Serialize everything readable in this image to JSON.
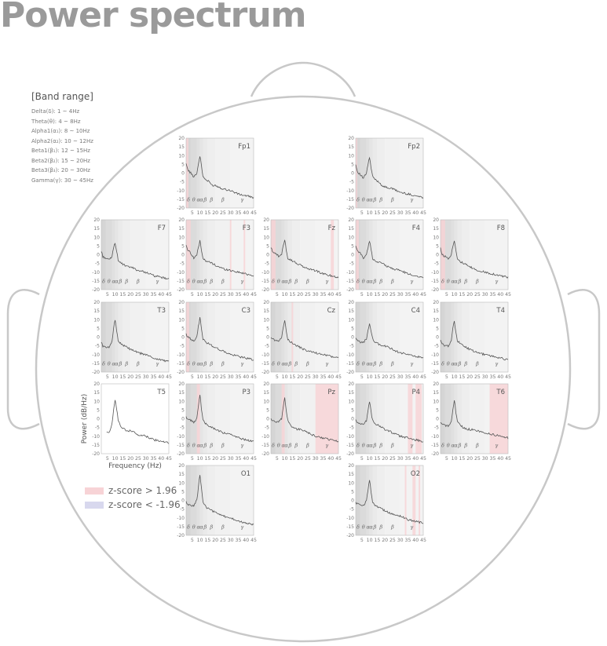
{
  "page": {
    "title": "Power spectrum"
  },
  "bands": {
    "title": "[Band range]",
    "items": [
      "Delta(δ): 1 ~ 4Hz",
      "Theta(θ): 4 ~ 8Hz",
      "Alpha1(α₁): 8 ~ 10Hz",
      "Alpha2(α₂): 10 ~ 12Hz",
      "Beta1(β₁): 12 ~ 15Hz",
      "Beta2(β₂): 15 ~ 20Hz",
      "Beta3(β₃): 20 ~ 30Hz",
      "Gamma(γ): 30 ~ 45Hz"
    ]
  },
  "legend": {
    "high": {
      "label": "z-score > 1.96",
      "color": "#f7d3d6"
    },
    "low": {
      "label": "z-score < -1.96",
      "color": "#d8d8ee"
    }
  },
  "colors": {
    "band_dark": "#b3b3b3",
    "band_light": "#e9e9e9",
    "line": "#555555",
    "head": "#c8c8c8"
  },
  "chart_data": {
    "type": "line",
    "xlabel": "Frequency (Hz)",
    "ylabel": "Power (dB/Hz)",
    "xlim": [
      1,
      45
    ],
    "ylim": [
      -20,
      20
    ],
    "yticks": [
      20,
      15,
      10,
      5,
      0,
      -5,
      -10,
      -15,
      -20
    ],
    "xticks": [
      5,
      10,
      15,
      20,
      25,
      30,
      35,
      40,
      45
    ],
    "band_labels": [
      "δ",
      "θ",
      "α",
      "α",
      "β",
      "β",
      "β",
      "γ"
    ],
    "band_edges_hz": [
      1,
      4,
      8,
      10,
      12,
      15,
      20,
      30,
      45
    ],
    "frequencies_hz": [
      1,
      2,
      4,
      6,
      8,
      9,
      10,
      11,
      12,
      14,
      16,
      18,
      20,
      25,
      30,
      35,
      40,
      45
    ],
    "channels": [
      {
        "name": "Fp1",
        "power_db": [
          6,
          2,
          0,
          -2,
          0,
          5,
          10,
          4,
          -2,
          -4,
          -5,
          -7,
          -7,
          -9,
          -10,
          -12,
          -13,
          -14
        ],
        "high_z_hz": [
          [
            1,
            2.5
          ]
        ],
        "low_z_hz": []
      },
      {
        "name": "Fp2",
        "power_db": [
          5,
          1,
          -1,
          -3,
          0,
          5,
          9,
          3,
          -2,
          -4,
          -5,
          -7,
          -8,
          -9,
          -11,
          -12,
          -13,
          -14
        ],
        "high_z_hz": [
          [
            1,
            2
          ]
        ],
        "low_z_hz": []
      },
      {
        "name": "F7",
        "power_db": [
          2,
          -1,
          -2,
          -3,
          -1,
          4,
          7,
          2,
          -3,
          -5,
          -6,
          -7,
          -7,
          -9,
          -10,
          -12,
          -13,
          -14
        ],
        "high_z_hz": [],
        "low_z_hz": []
      },
      {
        "name": "F3",
        "power_db": [
          5,
          3,
          1,
          -2,
          0,
          4,
          8,
          3,
          -2,
          -4,
          -4,
          -5,
          -6,
          -8,
          -9,
          -10,
          -11,
          -12
        ],
        "high_z_hz": [
          [
            1,
            4
          ],
          [
            29.5,
            30.5
          ],
          [
            38.5,
            39.5
          ]
        ],
        "low_z_hz": []
      },
      {
        "name": "Fz",
        "power_db": [
          4,
          2,
          1,
          -1,
          0,
          5,
          9,
          3,
          -2,
          -3,
          -4,
          -5,
          -6,
          -8,
          -9,
          -11,
          -12,
          -13
        ],
        "high_z_hz": [
          [
            1,
            4
          ],
          [
            40,
            42
          ]
        ],
        "low_z_hz": []
      },
      {
        "name": "F4",
        "power_db": [
          5,
          2,
          1,
          -2,
          0,
          4,
          8,
          3,
          -2,
          -4,
          -4,
          -5,
          -6,
          -8,
          -9,
          -11,
          -12,
          -13
        ],
        "high_z_hz": [
          [
            1,
            3
          ]
        ],
        "low_z_hz": []
      },
      {
        "name": "F8",
        "power_db": [
          4,
          0,
          -1,
          -2,
          0,
          5,
          8,
          3,
          -2,
          -4,
          -5,
          -6,
          -7,
          -9,
          -10,
          -11,
          -12,
          -13
        ],
        "high_z_hz": [
          [
            1,
            4
          ]
        ],
        "low_z_hz": []
      },
      {
        "name": "T3",
        "power_db": [
          -3,
          -5,
          -6,
          -6,
          -2,
          5,
          10,
          4,
          -2,
          -4,
          -5,
          -6,
          -7,
          -9,
          -10,
          -12,
          -13,
          -14
        ],
        "high_z_hz": [],
        "low_z_hz": []
      },
      {
        "name": "C3",
        "power_db": [
          2,
          0,
          -1,
          -2,
          0,
          6,
          11,
          5,
          -1,
          -3,
          -4,
          -5,
          -6,
          -8,
          -10,
          -11,
          -12,
          -13
        ],
        "high_z_hz": [
          [
            1,
            3
          ]
        ],
        "low_z_hz": []
      },
      {
        "name": "Cz",
        "power_db": [
          0,
          -1,
          -2,
          -2,
          0,
          5,
          10,
          4,
          -1,
          -3,
          -4,
          -5,
          -6,
          -8,
          -9,
          -10,
          -11,
          -12
        ],
        "high_z_hz": [
          [
            14.5,
            15.5
          ]
        ],
        "low_z_hz": []
      },
      {
        "name": "C4",
        "power_db": [
          -1,
          -2,
          -3,
          -3,
          -1,
          4,
          8,
          3,
          -1,
          -3,
          -4,
          -5,
          -5,
          -7,
          -9,
          -10,
          -11,
          -12
        ],
        "high_z_hz": [],
        "low_z_hz": []
      },
      {
        "name": "T4",
        "power_db": [
          -2,
          -4,
          -5,
          -5,
          -2,
          5,
          9,
          3,
          -2,
          -4,
          -5,
          -6,
          -7,
          -9,
          -10,
          -11,
          -12,
          -13
        ],
        "high_z_hz": [],
        "low_z_hz": []
      },
      {
        "name": "T5",
        "power_db": [
          null,
          null,
          -8,
          -8,
          -3,
          5,
          11,
          6,
          -1,
          -5,
          -6,
          -7,
          -7,
          -9,
          -10,
          -12,
          -13,
          -14
        ],
        "high_z_hz": [],
        "low_z_hz": []
      },
      {
        "name": "P3",
        "power_db": [
          1,
          0,
          -1,
          -2,
          0,
          7,
          14,
          6,
          -1,
          -3,
          -4,
          -5,
          -6,
          -8,
          -9,
          -11,
          -12,
          -13
        ],
        "high_z_hz": [
          [
            8,
            10
          ]
        ],
        "low_z_hz": []
      },
      {
        "name": "Pz",
        "power_db": [
          0,
          -1,
          -2,
          -2,
          0,
          6,
          12,
          5,
          -1,
          -4,
          -5,
          -6,
          -6,
          -8,
          -10,
          -11,
          -12,
          -13
        ],
        "high_z_hz": [
          [
            8,
            10
          ],
          [
            30,
            45
          ]
        ],
        "low_z_hz": []
      },
      {
        "name": "P4",
        "power_db": [
          -1,
          -2,
          -3,
          -3,
          -1,
          5,
          10,
          4,
          -1,
          -3,
          -4,
          -5,
          -6,
          -8,
          -10,
          -11,
          -12,
          -13
        ],
        "high_z_hz": [
          [
            35,
            38
          ],
          [
            40,
            44
          ]
        ],
        "low_z_hz": []
      },
      {
        "name": "T6",
        "power_db": [
          -2,
          -3,
          -4,
          -4,
          -2,
          5,
          11,
          4,
          -2,
          -4,
          -5,
          -6,
          -6,
          -7,
          -8,
          -9,
          -10,
          -11
        ],
        "high_z_hz": [
          [
            33,
            45
          ]
        ],
        "low_z_hz": []
      },
      {
        "name": "O1",
        "power_db": [
          -1,
          -2,
          -3,
          -3,
          0,
          8,
          15,
          7,
          -1,
          -4,
          -5,
          -6,
          -7,
          -9,
          -10,
          -12,
          -13,
          -14
        ],
        "high_z_hz": [],
        "low_z_hz": []
      },
      {
        "name": "O2",
        "power_db": [
          -1,
          -2,
          -3,
          -3,
          0,
          6,
          12,
          5,
          -1,
          -3,
          -4,
          -5,
          -6,
          -8,
          -9,
          -11,
          -12,
          -13
        ],
        "high_z_hz": [
          [
            33,
            34
          ],
          [
            38,
            40
          ],
          [
            42,
            43
          ]
        ],
        "low_z_hz": []
      }
    ]
  }
}
